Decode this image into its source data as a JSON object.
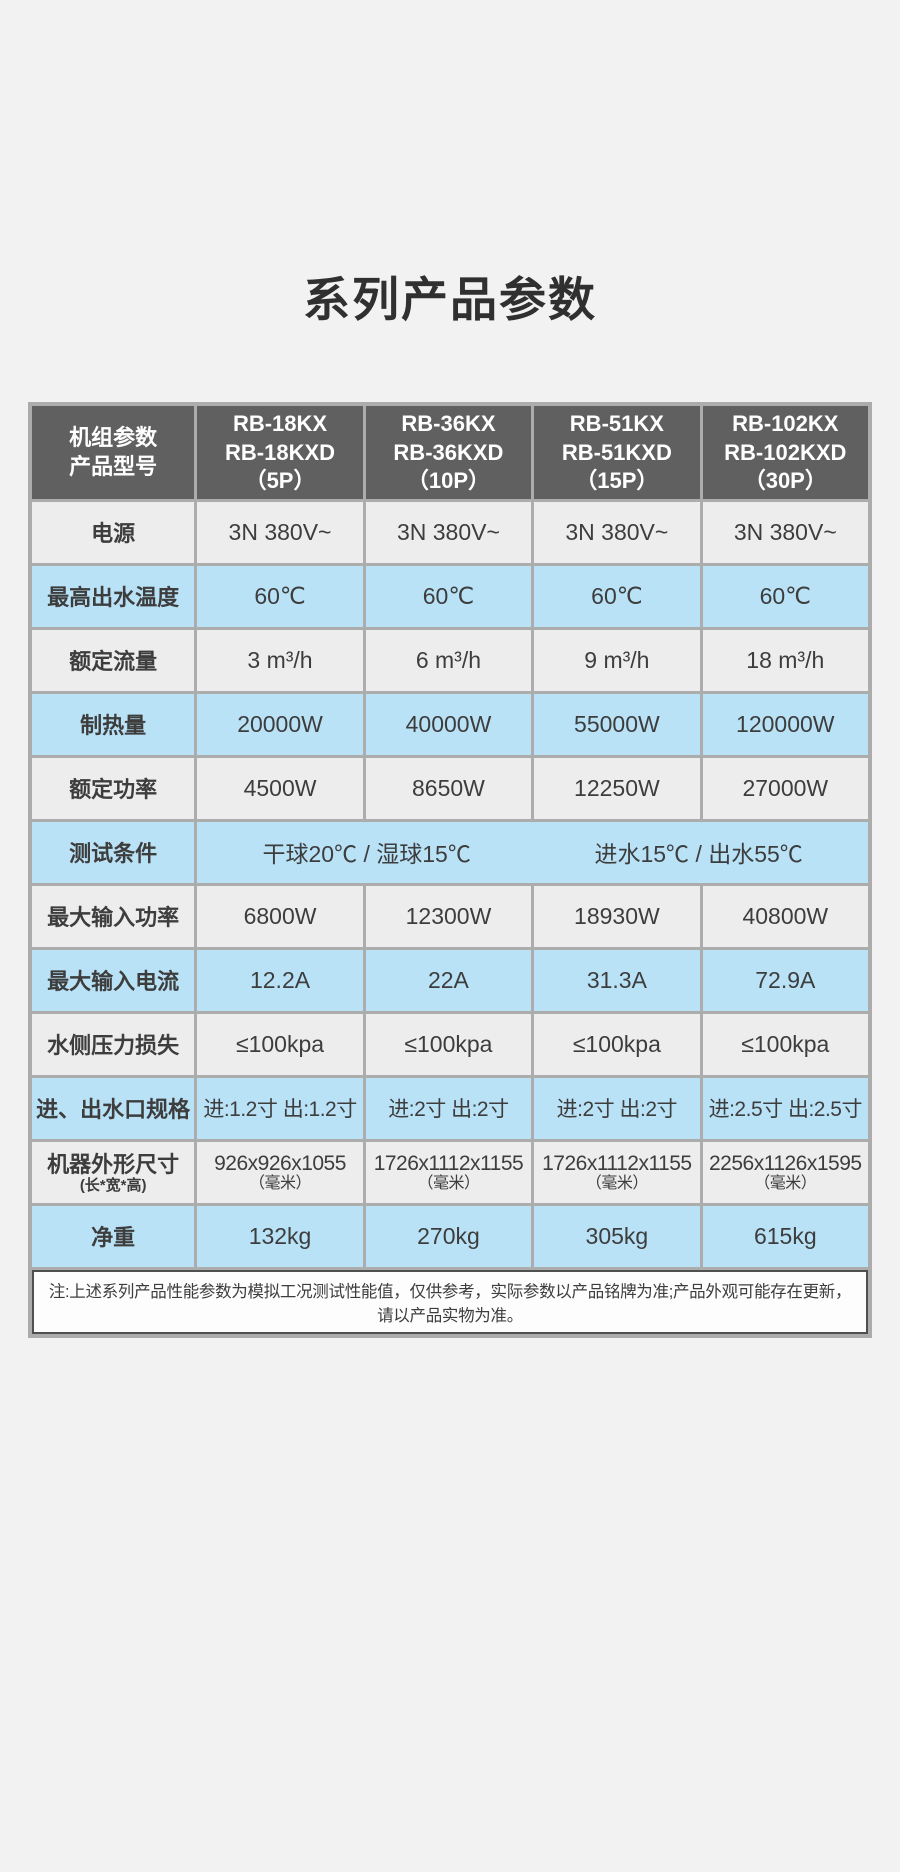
{
  "page": {
    "title": "系列产品参数"
  },
  "colors": {
    "page_bg": "#f2f2f2",
    "header_bg": "#606060",
    "header_text": "#ffffff",
    "row_gray": "#ededed",
    "row_blue": "#b9e2f7",
    "grid": "#acacac",
    "note_border": "#4f4f4f",
    "note_bg": "#fdfdfd",
    "text": "#3d3d3d",
    "title": "#303030"
  },
  "table": {
    "header": {
      "label_lines": [
        "机组参数",
        "产品型号"
      ],
      "columns": [
        {
          "lines": [
            "RB-18KX",
            "RB-18KXD",
            "（5P）"
          ]
        },
        {
          "lines": [
            "RB-36KX",
            "RB-36KXD",
            "（10P）"
          ]
        },
        {
          "lines": [
            "RB-51KX",
            "RB-51KXD",
            "（15P）"
          ]
        },
        {
          "lines": [
            "RB-102KX",
            "RB-102KXD",
            "（30P）"
          ]
        }
      ]
    },
    "rows": [
      {
        "label": "电源",
        "shade": "gray",
        "values": [
          [
            "3N 380V~"
          ],
          [
            "3N 380V~"
          ],
          [
            "3N 380V~"
          ],
          [
            "3N 380V~"
          ]
        ]
      },
      {
        "label": "最高出水温度",
        "shade": "blue",
        "values": [
          [
            "60℃"
          ],
          [
            "60℃"
          ],
          [
            "60℃"
          ],
          [
            "60℃"
          ]
        ]
      },
      {
        "label": "额定流量",
        "shade": "gray",
        "values": [
          [
            "3 m³/h"
          ],
          [
            "6 m³/h"
          ],
          [
            "9 m³/h"
          ],
          [
            "18 m³/h"
          ]
        ]
      },
      {
        "label": "制热量",
        "shade": "blue",
        "values": [
          [
            "20000W"
          ],
          [
            "40000W"
          ],
          [
            "55000W"
          ],
          [
            "120000W"
          ]
        ]
      },
      {
        "label": "额定功率",
        "shade": "gray",
        "values": [
          [
            "4500W"
          ],
          [
            "8650W"
          ],
          [
            "12250W"
          ],
          [
            "27000W"
          ]
        ]
      },
      {
        "label": "测试条件",
        "shade": "blue",
        "merged": [
          "干球20℃ / 湿球15℃",
          "进水15℃ / 出水55℃"
        ]
      },
      {
        "label": "最大输入功率",
        "shade": "gray",
        "values": [
          [
            "6800W"
          ],
          [
            "12300W"
          ],
          [
            "18930W"
          ],
          [
            "40800W"
          ]
        ]
      },
      {
        "label": "最大输入电流",
        "shade": "blue",
        "values": [
          [
            "12.2A"
          ],
          [
            "22A"
          ],
          [
            "31.3A"
          ],
          [
            "72.9A"
          ]
        ]
      },
      {
        "label": "水侧压力损失",
        "shade": "gray",
        "values": [
          [
            "≤100kpa"
          ],
          [
            "≤100kpa"
          ],
          [
            "≤100kpa"
          ],
          [
            "≤100kpa"
          ]
        ]
      },
      {
        "label": "进、出水口规格",
        "shade": "blue",
        "values": [
          [
            "进:1.2寸 出:1.2寸"
          ],
          [
            "进:2寸  出:2寸"
          ],
          [
            "进:2寸  出:2寸"
          ],
          [
            "进:2.5寸 出:2.5寸"
          ]
        ]
      },
      {
        "label": "机器外形尺寸",
        "label_sub": "(长*宽*高)",
        "shade": "gray",
        "values": [
          [
            "926x926x1055",
            "（毫米）"
          ],
          [
            "1726x1112x1155",
            "（毫米）"
          ],
          [
            "1726x1112x1155",
            "（毫米）"
          ],
          [
            "2256x1126x1595",
            "（毫米）"
          ]
        ]
      },
      {
        "label": "净重",
        "shade": "blue",
        "values": [
          [
            "132kg"
          ],
          [
            "270kg"
          ],
          [
            "305kg"
          ],
          [
            "615kg"
          ]
        ]
      }
    ],
    "note": "注:上述系列产品性能参数为模拟工况测试性能值，仅供参考，实际参数以产品铭牌为准;产品外观可能存在更新，请以产品实物为准。"
  }
}
